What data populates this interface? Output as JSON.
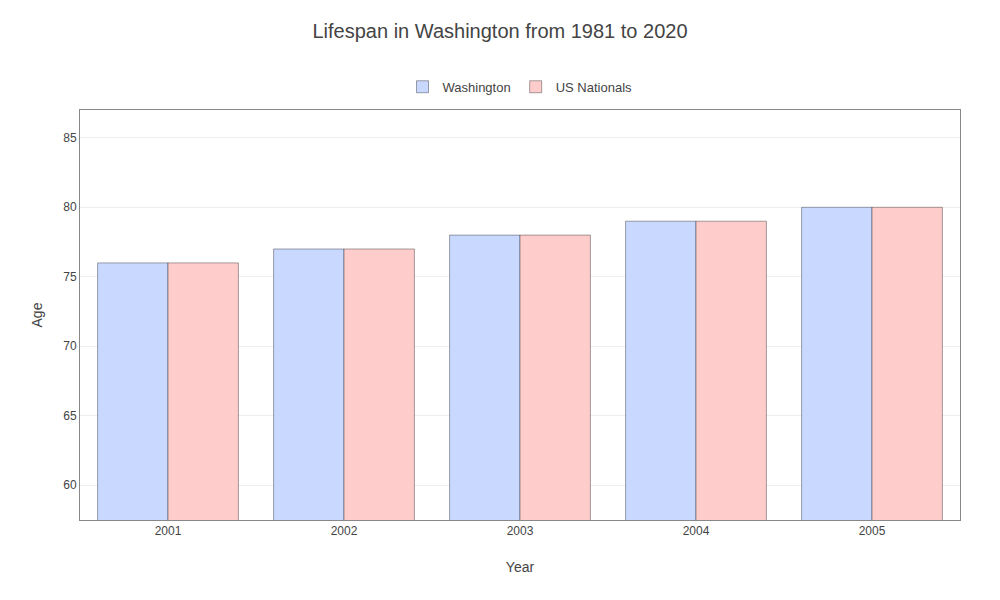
{
  "chart_data": {
    "type": "bar",
    "title": "Lifespan in Washington from 1981 to 2020",
    "xlabel": "Year",
    "ylabel": "Age",
    "categories": [
      "2001",
      "2002",
      "2003",
      "2004",
      "2005"
    ],
    "series": [
      {
        "name": "Washington",
        "color": "#c8d8ff",
        "values": [
          76.0,
          77.0,
          78.0,
          79.0,
          80.0
        ]
      },
      {
        "name": "US Nationals",
        "color": "#ffcccc",
        "values": [
          76.0,
          77.0,
          78.0,
          79.0,
          80.0
        ]
      }
    ],
    "ylim": [
      57.5,
      87
    ],
    "yticks": [
      60,
      65,
      70,
      75,
      80,
      85
    ],
    "grid": true,
    "legend": "top"
  }
}
